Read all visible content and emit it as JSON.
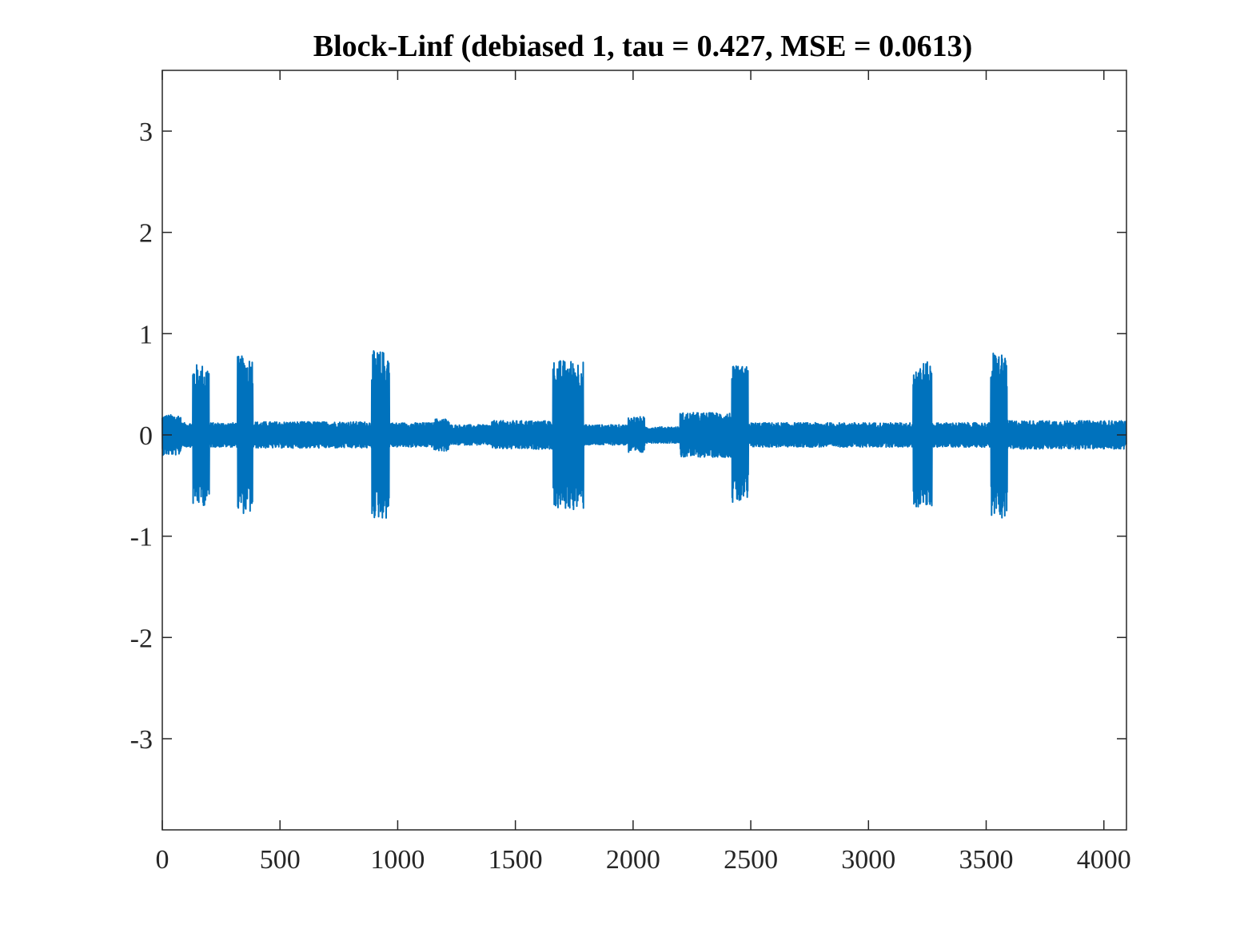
{
  "chart_data": {
    "type": "line",
    "title": "Block-Linf (debiased 1, tau = 0.427, MSE = 0.0613)",
    "xlabel": "",
    "ylabel": "",
    "xlim": [
      0,
      4096
    ],
    "ylim": [
      -3.9,
      3.6
    ],
    "xticks": [
      0,
      500,
      1000,
      1500,
      2000,
      2500,
      3000,
      3500,
      4000
    ],
    "yticks": [
      -3,
      -2,
      -1,
      0,
      1,
      2,
      3
    ],
    "xtick_labels": [
      "0",
      "500",
      "1000",
      "1500",
      "2000",
      "2500",
      "3000",
      "3500",
      "4000"
    ],
    "ytick_labels": [
      "-3",
      "-2",
      "-1",
      "0",
      "1",
      "2",
      "3"
    ],
    "grid": false,
    "line_color": "#0072BD",
    "n_points": 4096,
    "baseline_noise_amplitude": 0.12,
    "baseline_segments": [
      {
        "from": 0,
        "to": 80,
        "amp": 0.2
      },
      {
        "from": 80,
        "to": 130,
        "amp": 0.12
      },
      {
        "from": 130,
        "to": 200,
        "amp": 0.7
      },
      {
        "from": 200,
        "to": 320,
        "amp": 0.12
      },
      {
        "from": 320,
        "to": 385,
        "amp": 0.78
      },
      {
        "from": 385,
        "to": 890,
        "amp": 0.13
      },
      {
        "from": 890,
        "to": 965,
        "amp": 0.83
      },
      {
        "from": 965,
        "to": 1150,
        "amp": 0.12
      },
      {
        "from": 1150,
        "to": 1220,
        "amp": 0.16
      },
      {
        "from": 1220,
        "to": 1400,
        "amp": 0.1
      },
      {
        "from": 1400,
        "to": 1660,
        "amp": 0.14
      },
      {
        "from": 1660,
        "to": 1790,
        "amp": 0.74
      },
      {
        "from": 1790,
        "to": 1980,
        "amp": 0.1
      },
      {
        "from": 1980,
        "to": 2050,
        "amp": 0.18
      },
      {
        "from": 2050,
        "to": 2200,
        "amp": 0.08
      },
      {
        "from": 2200,
        "to": 2420,
        "amp": 0.22
      },
      {
        "from": 2420,
        "to": 2490,
        "amp": 0.68
      },
      {
        "from": 2490,
        "to": 3190,
        "amp": 0.12
      },
      {
        "from": 3190,
        "to": 3270,
        "amp": 0.72
      },
      {
        "from": 3270,
        "to": 3520,
        "amp": 0.12
      },
      {
        "from": 3520,
        "to": 3590,
        "amp": 0.82
      },
      {
        "from": 3590,
        "to": 4096,
        "amp": 0.14
      }
    ]
  }
}
